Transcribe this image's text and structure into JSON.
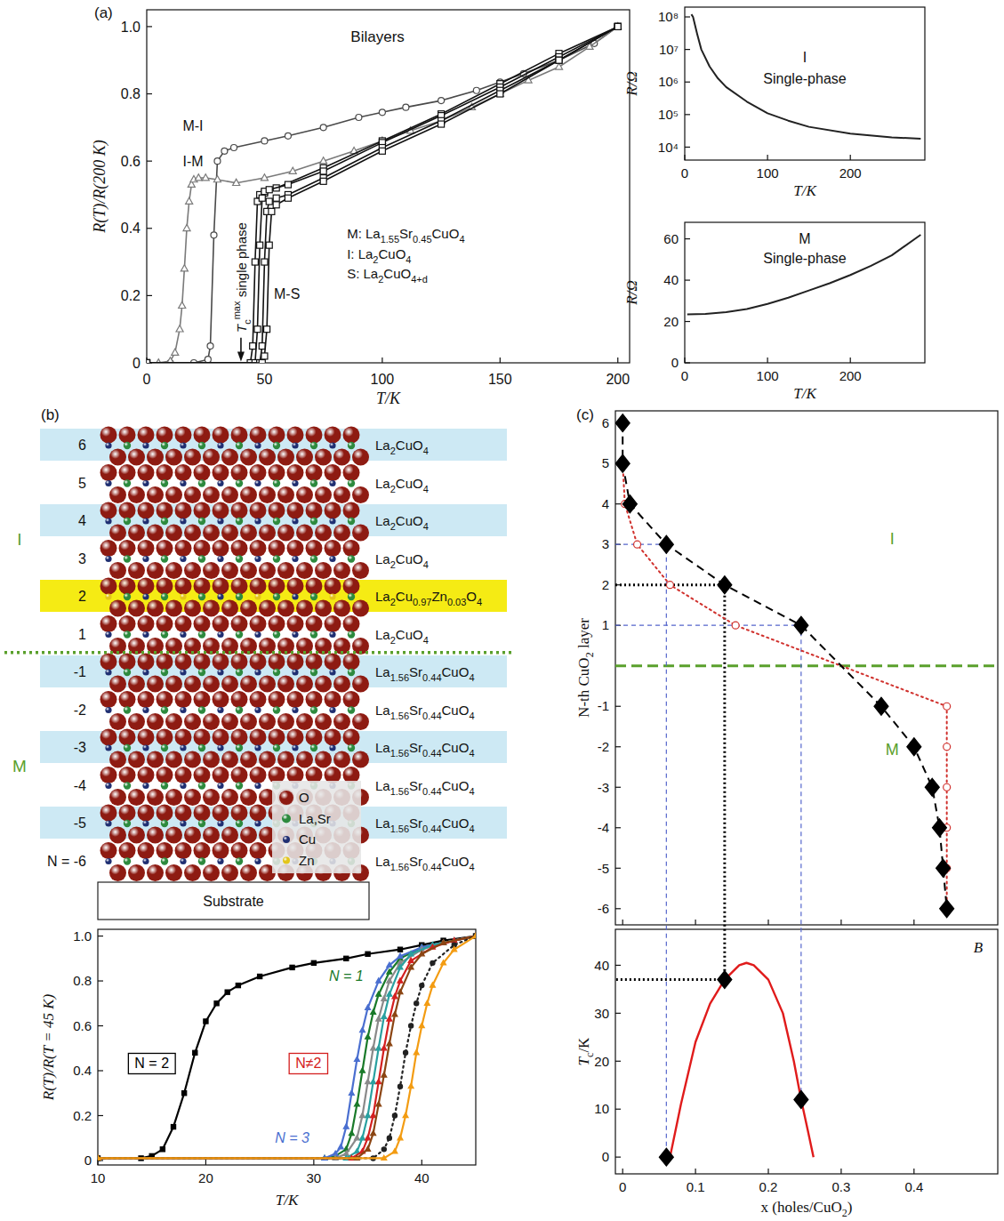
{
  "panel_labels": [
    "(a)",
    "(b)",
    "(c)"
  ],
  "chart_data": [
    {
      "type": "line",
      "x_label": "T/K",
      "y_label": "R(T)/R(200 K)",
      "xlim": [
        0,
        205
      ],
      "ylim": [
        0,
        1.05
      ],
      "xticks": [
        0,
        50,
        100,
        150,
        200
      ],
      "yticks": [
        0,
        0.2,
        0.4,
        0.6,
        0.8,
        {
          "value": 1,
          "label": "1.0"
        }
      ],
      "grid": false,
      "series": [
        {
          "name": "M-I",
          "color": "#4a4a4a",
          "marker": "open_circle",
          "line_style": "solid",
          "x": [
            10,
            20,
            26,
            27,
            28.5,
            30,
            33,
            37,
            50,
            60,
            75,
            90,
            100,
            110,
            125,
            140,
            150,
            160,
            175,
            190,
            200
          ],
          "values": [
            0,
            0,
            0.01,
            0.05,
            0.38,
            0.6,
            0.63,
            0.64,
            0.66,
            0.675,
            0.7,
            0.73,
            0.745,
            0.76,
            0.78,
            0.81,
            0.835,
            0.86,
            0.9,
            0.95,
            1.0
          ]
        },
        {
          "name": "I-M",
          "color": "#7a7a7a",
          "marker": "open_triangle",
          "line_style": "solid",
          "x": [
            5,
            10,
            12,
            14,
            15,
            16,
            17,
            18,
            19,
            20,
            22,
            25,
            30,
            38,
            50,
            62,
            75,
            88,
            100,
            112,
            125,
            138,
            150,
            162,
            175,
            188,
            200
          ],
          "values": [
            0,
            0.005,
            0.03,
            0.1,
            0.17,
            0.28,
            0.4,
            0.48,
            0.53,
            0.545,
            0.55,
            0.55,
            0.545,
            0.535,
            0.55,
            0.57,
            0.6,
            0.63,
            0.66,
            0.69,
            0.72,
            0.76,
            0.8,
            0.84,
            0.88,
            0.94,
            1.0
          ]
        },
        {
          "name": "M-S",
          "color": "#111111",
          "marker": "open_square",
          "line_style": "solid",
          "x": [
            0,
            44,
            45,
            46,
            47,
            48,
            50,
            55,
            75,
            100,
            125,
            150,
            175,
            200
          ],
          "values": [
            0,
            0,
            0.05,
            0.3,
            0.48,
            0.5,
            0.505,
            0.52,
            0.58,
            0.66,
            0.74,
            0.83,
            0.92,
            1.0
          ]
        },
        {
          "color": "#111111",
          "marker": "open_square",
          "line_style": "solid",
          "x": [
            0,
            46,
            47,
            48,
            49,
            50,
            52,
            60,
            75,
            100,
            125,
            150,
            175,
            200
          ],
          "values": [
            0,
            0,
            0.1,
            0.35,
            0.49,
            0.51,
            0.515,
            0.53,
            0.57,
            0.655,
            0.735,
            0.82,
            0.91,
            1.0
          ]
        },
        {
          "color": "#111111",
          "marker": "open_square",
          "line_style": "solid",
          "x": [
            0,
            48,
            49,
            50,
            51,
            52,
            55,
            60,
            75,
            100,
            125,
            150,
            175,
            200
          ],
          "values": [
            0,
            0,
            0.05,
            0.3,
            0.45,
            0.48,
            0.49,
            0.5,
            0.55,
            0.64,
            0.72,
            0.81,
            0.9,
            1.0
          ]
        },
        {
          "color": "#111111",
          "marker": "open_square",
          "line_style": "solid",
          "x": [
            0,
            49,
            50,
            51,
            52,
            53,
            55,
            60,
            75,
            100,
            125,
            150,
            175,
            200
          ],
          "values": [
            0,
            0,
            0.02,
            0.1,
            0.35,
            0.45,
            0.47,
            0.49,
            0.54,
            0.63,
            0.71,
            0.8,
            0.9,
            1.0
          ]
        }
      ],
      "annotations": [
        "Bilayers",
        "M: La1.55Sr0.45CuO4",
        "I: La2CuO4",
        "S: La2CuO4+d"
      ],
      "arrow_annotation": {
        "text": "Tcmax single phase",
        "x": 40
      }
    },
    {
      "type": "line",
      "x_label": "T/K",
      "y_label": "R/Ω",
      "log": "y",
      "xlim": [
        0,
        290
      ],
      "ylim": [
        4000,
        200000000
      ],
      "xticks": [
        0,
        100,
        200
      ],
      "yticks": [
        {
          "value": 10000,
          "label": "10⁴"
        },
        {
          "value": 100000,
          "label": "10⁵"
        },
        {
          "value": 1000000,
          "label": "10⁶"
        },
        {
          "value": 10000000,
          "label": "10⁷"
        },
        {
          "value": 100000000,
          "label": "10⁸"
        }
      ],
      "grid": false,
      "series": [
        {
          "color": "#222222",
          "marker": "none",
          "line_style": "solid",
          "x": [
            8,
            10,
            15,
            20,
            30,
            40,
            50,
            75,
            100,
            125,
            150,
            200,
            250,
            285
          ],
          "values": [
            120000000,
            100000000,
            30000000,
            10000000,
            3000000,
            1300000,
            700000,
            250000,
            110000,
            65000,
            42000,
            26000,
            20000,
            18000
          ]
        }
      ],
      "annotations": [
        "I",
        "Single-phase"
      ]
    },
    {
      "type": "line",
      "x_label": "T/K",
      "y_label": "R/Ω",
      "xlim": [
        0,
        290
      ],
      "ylim": [
        0,
        68
      ],
      "xticks": [
        0,
        100,
        200
      ],
      "yticks": [
        0,
        20,
        40,
        60
      ],
      "grid": false,
      "series": [
        {
          "color": "#222222",
          "marker": "none",
          "line_style": "solid",
          "x": [
            3,
            25,
            50,
            75,
            100,
            125,
            150,
            175,
            200,
            225,
            250,
            285
          ],
          "values": [
            23.5,
            23.7,
            24.5,
            26,
            28.5,
            31.5,
            35,
            38.5,
            42.5,
            47,
            52,
            62
          ]
        }
      ],
      "annotations": [
        "M",
        "Single-phase"
      ]
    },
    {
      "type": "line",
      "x_label": "T/K",
      "y_label": "R(T)/R(T = 45 K)",
      "xlim": [
        10,
        45
      ],
      "ylim": [
        -0.02,
        1.03
      ],
      "xticks": [
        10,
        20,
        30,
        40
      ],
      "yticks": [
        0,
        0.2,
        0.4,
        0.6,
        0.8,
        {
          "value": 1,
          "label": "1.0"
        }
      ],
      "grid": false,
      "series": [
        {
          "name": "N = 2",
          "color": "#000000",
          "marker": "square",
          "line_style": "solid",
          "x": [
            10,
            14,
            15,
            16,
            17,
            18,
            19,
            20,
            21,
            22,
            23,
            25,
            28,
            30,
            33,
            35,
            38,
            40,
            42,
            45
          ],
          "values": [
            0.01,
            0.01,
            0.02,
            0.05,
            0.15,
            0.3,
            0.48,
            0.62,
            0.7,
            0.75,
            0.78,
            0.82,
            0.86,
            0.88,
            0.9,
            0.92,
            0.94,
            0.96,
            0.98,
            1.0
          ]
        },
        {
          "name": "N = 1",
          "color": "#1a7a2a",
          "marker": "triangle",
          "line_style": "solid",
          "x": [
            10,
            31,
            32,
            33,
            33.5,
            34,
            34.5,
            35,
            35.5,
            36,
            37,
            38,
            40,
            42,
            45
          ],
          "values": [
            0.01,
            0.01,
            0.02,
            0.05,
            0.12,
            0.25,
            0.4,
            0.55,
            0.66,
            0.74,
            0.84,
            0.9,
            0.95,
            0.97,
            1.0
          ]
        },
        {
          "name": "N = 3",
          "color": "#4a6fd0",
          "marker": "triangle",
          "line_style": "solid",
          "x": [
            10,
            31,
            32,
            32.5,
            33,
            33.5,
            34,
            34.5,
            35,
            36,
            37,
            38,
            40,
            42,
            45
          ],
          "values": [
            0.01,
            0.01,
            0.03,
            0.06,
            0.15,
            0.3,
            0.45,
            0.58,
            0.68,
            0.8,
            0.87,
            0.91,
            0.95,
            0.97,
            1.0
          ]
        },
        {
          "color": "#8a8a8a",
          "marker": "triangle",
          "line_style": "solid",
          "x": [
            10,
            32,
            33,
            34,
            34.5,
            35,
            35.5,
            36,
            36.5,
            37,
            38,
            40,
            42,
            45
          ],
          "values": [
            0.01,
            0.01,
            0.03,
            0.1,
            0.2,
            0.35,
            0.5,
            0.63,
            0.72,
            0.8,
            0.88,
            0.94,
            0.97,
            1.0
          ]
        },
        {
          "color": "#2aa0a0",
          "marker": "triangle",
          "line_style": "solid",
          "x": [
            10,
            33,
            34,
            34.5,
            35,
            35.5,
            36,
            36.5,
            37,
            38,
            39,
            41,
            43,
            45
          ],
          "values": [
            0.01,
            0.01,
            0.04,
            0.1,
            0.2,
            0.35,
            0.5,
            0.64,
            0.74,
            0.86,
            0.92,
            0.96,
            0.98,
            1.0
          ]
        },
        {
          "color": "#d42020",
          "marker": "triangle",
          "line_style": "solid",
          "x": [
            10,
            33.5,
            34.5,
            35,
            35.5,
            36,
            36.5,
            37,
            37.5,
            38,
            39,
            41,
            43,
            45
          ],
          "values": [
            0.01,
            0.01,
            0.04,
            0.1,
            0.2,
            0.35,
            0.5,
            0.63,
            0.73,
            0.8,
            0.89,
            0.95,
            0.98,
            1.0
          ]
        },
        {
          "color": "#8b4513",
          "marker": "triangle",
          "line_style": "solid",
          "x": [
            10,
            34,
            35,
            35.5,
            36,
            36.5,
            37,
            37.5,
            38,
            39,
            40,
            42,
            45
          ],
          "values": [
            0.01,
            0.01,
            0.05,
            0.12,
            0.25,
            0.38,
            0.52,
            0.65,
            0.75,
            0.86,
            0.92,
            0.97,
            1.0
          ]
        },
        {
          "color": "#222222",
          "marker": "circle",
          "line_style": "dotted",
          "x": [
            10,
            35.5,
            36.5,
            37,
            37.5,
            38,
            38.5,
            39,
            39.5,
            40,
            41,
            43,
            45
          ],
          "values": [
            0.01,
            0.01,
            0.05,
            0.1,
            0.2,
            0.33,
            0.48,
            0.6,
            0.7,
            0.78,
            0.88,
            0.96,
            1.0
          ]
        },
        {
          "color": "#f39c12",
          "marker": "triangle",
          "line_style": "solid",
          "x": [
            10,
            36.5,
            37.5,
            38,
            38.5,
            39,
            39.5,
            40,
            40.5,
            41,
            42,
            43,
            45
          ],
          "values": [
            0.01,
            0.01,
            0.04,
            0.1,
            0.2,
            0.33,
            0.48,
            0.6,
            0.7,
            0.78,
            0.88,
            0.94,
            1.0
          ]
        }
      ],
      "annotations": [
        "N≠2"
      ]
    },
    {
      "type": "line",
      "y_label": "N-th CuO2 layer",
      "xlim": [
        -0.01,
        0.515
      ],
      "ylim": [
        -6.4,
        6.3
      ],
      "xticks": [
        0,
        0.1,
        0.2,
        0.3,
        0.4
      ],
      "yticks": [
        6,
        5,
        4,
        3,
        2,
        1,
        -1,
        -2,
        -3,
        -4,
        -5,
        -6
      ],
      "tick_labels": "y",
      "grid": false,
      "series": [
        {
          "color": "#d0312d",
          "marker": "open_circle",
          "line_style": "dotted",
          "x": [
            0,
            0.003,
            0.02,
            0.065,
            0.155,
            0.445,
            0.445,
            0.445,
            0.445,
            0.445,
            0.445
          ],
          "values": [
            5,
            4,
            3,
            2,
            1,
            -1,
            -2,
            -3,
            -4,
            -5,
            -6
          ]
        },
        {
          "color": "#000000",
          "marker": "diamond",
          "line_style": "dashed",
          "x": [
            0,
            0,
            0.01,
            0.06,
            0.14,
            0.245,
            0.355,
            0.4,
            0.425,
            0.435,
            0.44,
            0.445
          ],
          "values": [
            6,
            5,
            4,
            3,
            2,
            1,
            -1,
            -2,
            -3,
            -4,
            -5,
            -6
          ]
        }
      ],
      "annotations": [
        "I",
        "M"
      ]
    },
    {
      "type": "line",
      "x_label": "x (holes/CuO2)",
      "y_label": "Tc/K",
      "xlim": [
        -0.01,
        0.515
      ],
      "ylim": [
        -3.5,
        47.5
      ],
      "xticks": [
        0,
        0.1,
        0.2,
        0.3,
        0.4
      ],
      "yticks": [
        0,
        10,
        20,
        30,
        40
      ],
      "grid": false,
      "series": [
        {
          "color": "#e01b1b",
          "marker": "none",
          "line_style": "solid",
          "x": [
            0.065,
            0.08,
            0.1,
            0.12,
            0.14,
            0.16,
            0.17,
            0.18,
            0.2,
            0.22,
            0.235,
            0.245,
            0.255,
            0.262
          ],
          "values": [
            0,
            11,
            24,
            32,
            37,
            40,
            40.5,
            40,
            37,
            30,
            20,
            12,
            5,
            0
          ]
        },
        {
          "color": "#000000",
          "marker": "diamond",
          "line_style": "none",
          "x": [
            0.06,
            0.14,
            0.245
          ],
          "values": [
            0,
            37,
            12
          ]
        }
      ],
      "annotations": [
        "B"
      ]
    }
  ],
  "diagram": {
    "layers": [
      {
        "label": "6",
        "formula": "La2CuO4",
        "color": "#cde9f4"
      },
      {
        "label": "5",
        "formula": "La2CuO4",
        "color": null
      },
      {
        "label": "4",
        "formula": "La2CuO4",
        "color": "#cde9f4"
      },
      {
        "label": "3",
        "formula": "La2CuO4",
        "color": null
      },
      {
        "label": "2",
        "formula": "La2Cu0.97Zn0.03O4",
        "color": "#f5eb14"
      },
      {
        "label": "1",
        "formula": "La2CuO4",
        "color": null
      },
      {
        "label": "-1",
        "formula": "La1.56Sr0.44CuO4",
        "color": "#cde9f4"
      },
      {
        "label": "-2",
        "formula": "La1.56Sr0.44CuO4",
        "color": null
      },
      {
        "label": "-3",
        "formula": "La1.56Sr0.44CuO4",
        "color": "#cde9f4"
      },
      {
        "label": "-4",
        "formula": "La1.56Sr0.44CuO4",
        "color": null
      },
      {
        "label": "-5",
        "formula": "La1.56Sr0.44CuO4",
        "color": "#cde9f4"
      },
      {
        "label": "N = -6",
        "formula": "La1.56Sr0.44CuO4",
        "color": null
      }
    ],
    "regions": [
      {
        "label": "I",
        "color": "#5aa02c"
      },
      {
        "label": "M",
        "color": "#5aa02c"
      }
    ],
    "atoms": [
      {
        "label": "O",
        "color": "#8e1b12"
      },
      {
        "label": "La,Sr",
        "color": "#2d8a3e"
      },
      {
        "label": "Cu",
        "color": "#1f2f72"
      },
      {
        "label": "Zn",
        "color": "#e3c51b"
      }
    ],
    "substrate": "Substrate"
  }
}
